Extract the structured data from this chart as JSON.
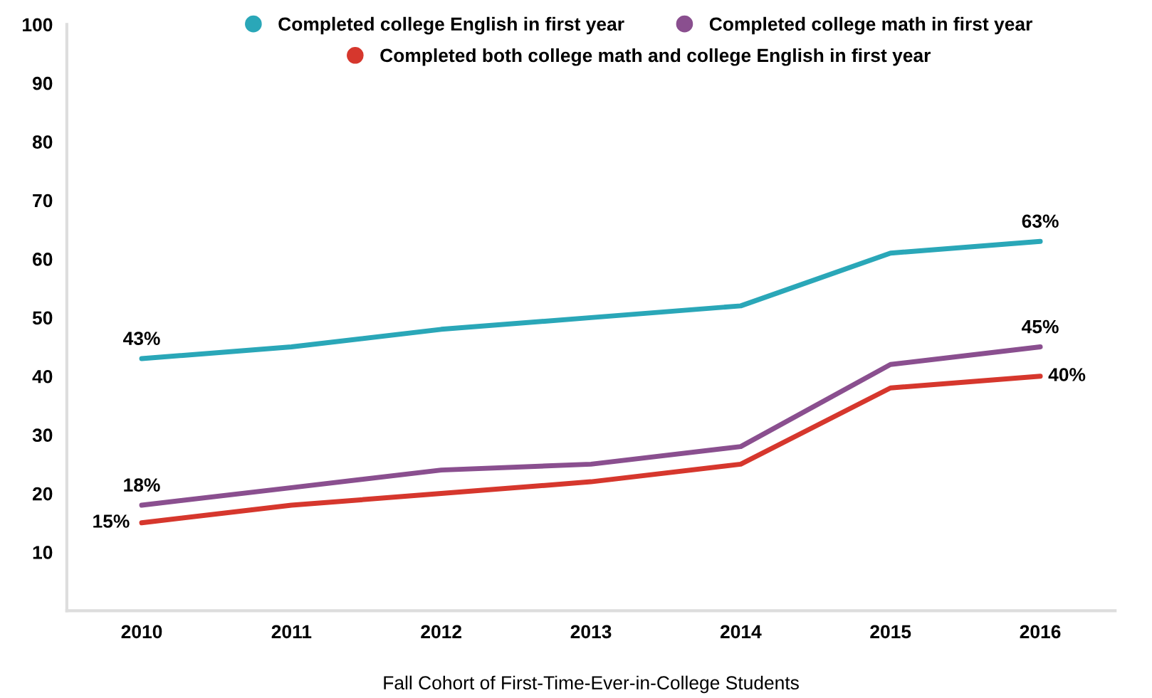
{
  "chart_data": {
    "type": "line",
    "xlabel": "Fall Cohort of First-Time-Ever-in-College Students",
    "categories": [
      "2010",
      "2011",
      "2012",
      "2013",
      "2014",
      "2015",
      "2016"
    ],
    "series": [
      {
        "name": "Completed college English in first year",
        "color": "#2aa7b8",
        "values": [
          43,
          45,
          48,
          50,
          52,
          61,
          63
        ],
        "value_labels": [
          "43%",
          null,
          null,
          null,
          null,
          null,
          "63%"
        ]
      },
      {
        "name": "Completed college math in first year",
        "color": "#8a4f8f",
        "values": [
          18,
          21,
          24,
          25,
          28,
          42,
          45
        ],
        "value_labels": [
          "18%",
          null,
          null,
          null,
          null,
          null,
          "45%"
        ]
      },
      {
        "name": "Completed both college math and college English in first year",
        "color": "#d6372d",
        "values": [
          15,
          18,
          20,
          22,
          25,
          38,
          40
        ],
        "value_labels": [
          "15%",
          null,
          null,
          null,
          null,
          null,
          "40%"
        ]
      }
    ],
    "ylim": [
      0,
      100
    ],
    "yticks": [
      10,
      20,
      30,
      40,
      50,
      60,
      70,
      80,
      90,
      100
    ],
    "grid": false,
    "legend": "top",
    "marker": "none",
    "line_style": "solid"
  }
}
